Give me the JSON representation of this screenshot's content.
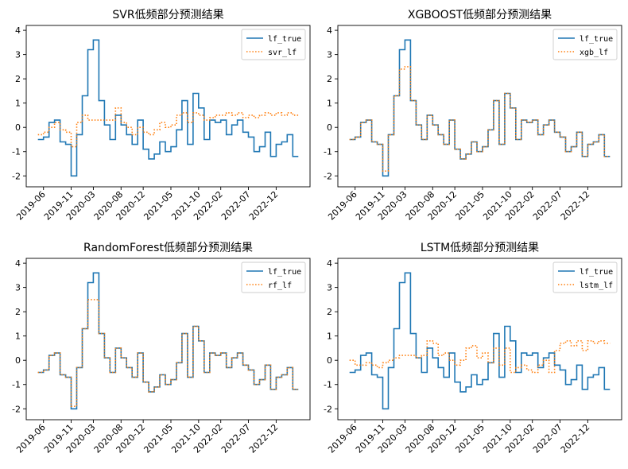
{
  "chart_data": [
    {
      "type": "line",
      "title": "SVR低频部分预测结果",
      "xlabel": "",
      "ylabel": "",
      "ylim": [
        -2.45,
        4.2
      ],
      "y_ticks": [
        -2,
        -1,
        0,
        1,
        2,
        3,
        4
      ],
      "x_ticks": [
        "2019-06",
        "2019-11",
        "2020-03",
        "2020-08",
        "2020-12",
        "2021-05",
        "2021-10",
        "2022-02",
        "2022-07",
        "2022-12"
      ],
      "legend_position": "top-right",
      "x": [
        "2019-05",
        "2019-06",
        "2019-07",
        "2019-08",
        "2019-09",
        "2019-10",
        "2019-11",
        "2019-12",
        "2020-01",
        "2020-02",
        "2020-03",
        "2020-04",
        "2020-05",
        "2020-06",
        "2020-07",
        "2020-08",
        "2020-09",
        "2020-10",
        "2020-11",
        "2020-12",
        "2021-01",
        "2021-02",
        "2021-03",
        "2021-04",
        "2021-05",
        "2021-06",
        "2021-07",
        "2021-08",
        "2021-09",
        "2021-10",
        "2021-11",
        "2021-12",
        "2022-01",
        "2022-02",
        "2022-03",
        "2022-04",
        "2022-05",
        "2022-06",
        "2022-07",
        "2022-08",
        "2022-09",
        "2022-10",
        "2022-11",
        "2022-12",
        "2023-01",
        "2023-02",
        "2023-03"
      ],
      "series": [
        {
          "name": "lf_true",
          "color": "#1f77b4",
          "style": "solid",
          "values": [
            -0.5,
            -0.4,
            0.2,
            0.3,
            -0.6,
            -0.7,
            -2.0,
            -0.3,
            1.3,
            3.2,
            3.6,
            1.1,
            0.1,
            -0.5,
            0.5,
            0.1,
            -0.3,
            -0.7,
            0.3,
            -0.9,
            -1.3,
            -1.1,
            -0.6,
            -1.0,
            -0.8,
            -0.1,
            1.1,
            -0.7,
            1.4,
            0.8,
            -0.5,
            0.3,
            0.2,
            0.3,
            -0.3,
            0.1,
            0.3,
            -0.2,
            -0.4,
            -1.0,
            -0.8,
            -0.2,
            -1.2,
            -0.7,
            -0.6,
            -0.3,
            -1.2
          ]
        },
        {
          "name": "svr_lf",
          "color": "#ff7f0e",
          "style": "dotted",
          "values": [
            -0.3,
            -0.2,
            0.0,
            0.2,
            -0.1,
            -0.2,
            -0.8,
            0.2,
            0.5,
            0.3,
            0.3,
            0.3,
            0.3,
            0.3,
            0.8,
            0.2,
            0.0,
            -0.3,
            0.0,
            -0.2,
            -0.3,
            -0.1,
            0.2,
            0.0,
            0.1,
            0.5,
            0.6,
            0.2,
            0.6,
            0.5,
            0.3,
            0.4,
            0.5,
            0.5,
            0.6,
            0.5,
            0.6,
            0.4,
            0.5,
            0.4,
            0.5,
            0.6,
            0.5,
            0.6,
            0.5,
            0.6,
            0.5
          ]
        }
      ]
    },
    {
      "type": "line",
      "title": "XGBOOST低频部分预测结果",
      "xlabel": "",
      "ylabel": "",
      "ylim": [
        -2.45,
        4.2
      ],
      "y_ticks": [
        -2,
        -1,
        0,
        1,
        2,
        3,
        4
      ],
      "x_ticks": [
        "2019-06",
        "2019-11",
        "2020-03",
        "2020-08",
        "2020-12",
        "2021-05",
        "2021-10",
        "2022-02",
        "2022-07",
        "2022-12"
      ],
      "legend_position": "top-right",
      "x": [
        "2019-05",
        "2019-06",
        "2019-07",
        "2019-08",
        "2019-09",
        "2019-10",
        "2019-11",
        "2019-12",
        "2020-01",
        "2020-02",
        "2020-03",
        "2020-04",
        "2020-05",
        "2020-06",
        "2020-07",
        "2020-08",
        "2020-09",
        "2020-10",
        "2020-11",
        "2020-12",
        "2021-01",
        "2021-02",
        "2021-03",
        "2021-04",
        "2021-05",
        "2021-06",
        "2021-07",
        "2021-08",
        "2021-09",
        "2021-10",
        "2021-11",
        "2021-12",
        "2022-01",
        "2022-02",
        "2022-03",
        "2022-04",
        "2022-05",
        "2022-06",
        "2022-07",
        "2022-08",
        "2022-09",
        "2022-10",
        "2022-11",
        "2022-12",
        "2023-01",
        "2023-02",
        "2023-03"
      ],
      "series": [
        {
          "name": "lf_true",
          "color": "#1f77b4",
          "style": "solid",
          "values": [
            -0.5,
            -0.4,
            0.2,
            0.3,
            -0.6,
            -0.7,
            -2.0,
            -0.3,
            1.3,
            3.2,
            3.6,
            1.1,
            0.1,
            -0.5,
            0.5,
            0.1,
            -0.3,
            -0.7,
            0.3,
            -0.9,
            -1.3,
            -1.1,
            -0.6,
            -1.0,
            -0.8,
            -0.1,
            1.1,
            -0.7,
            1.4,
            0.8,
            -0.5,
            0.3,
            0.2,
            0.3,
            -0.3,
            0.1,
            0.3,
            -0.2,
            -0.4,
            -1.0,
            -0.8,
            -0.2,
            -1.2,
            -0.7,
            -0.6,
            -0.3,
            -1.2
          ]
        },
        {
          "name": "xgb_lf",
          "color": "#ff7f0e",
          "style": "dotted",
          "values": [
            -0.5,
            -0.4,
            0.2,
            0.3,
            -0.6,
            -0.7,
            -1.8,
            -0.3,
            1.3,
            2.4,
            2.5,
            1.1,
            0.1,
            -0.5,
            0.5,
            0.1,
            -0.3,
            -0.7,
            0.3,
            -0.9,
            -1.3,
            -1.1,
            -0.6,
            -1.0,
            -0.8,
            -0.1,
            1.1,
            -0.7,
            1.4,
            0.8,
            -0.5,
            0.3,
            0.2,
            0.3,
            -0.3,
            0.1,
            0.3,
            -0.2,
            -0.4,
            -1.0,
            -0.8,
            -0.2,
            -1.2,
            -0.7,
            -0.6,
            -0.3,
            -1.2
          ]
        }
      ]
    },
    {
      "type": "line",
      "title": "RandomForest低频部分预测结果",
      "xlabel": "",
      "ylabel": "",
      "ylim": [
        -2.45,
        4.2
      ],
      "y_ticks": [
        -2,
        -1,
        0,
        1,
        2,
        3,
        4
      ],
      "x_ticks": [
        "2019-06",
        "2019-11",
        "2020-03",
        "2020-08",
        "2020-12",
        "2021-05",
        "2021-10",
        "2022-02",
        "2022-07",
        "2022-12"
      ],
      "legend_position": "top-right",
      "x": [
        "2019-05",
        "2019-06",
        "2019-07",
        "2019-08",
        "2019-09",
        "2019-10",
        "2019-11",
        "2019-12",
        "2020-01",
        "2020-02",
        "2020-03",
        "2020-04",
        "2020-05",
        "2020-06",
        "2020-07",
        "2020-08",
        "2020-09",
        "2020-10",
        "2020-11",
        "2020-12",
        "2021-01",
        "2021-02",
        "2021-03",
        "2021-04",
        "2021-05",
        "2021-06",
        "2021-07",
        "2021-08",
        "2021-09",
        "2021-10",
        "2021-11",
        "2021-12",
        "2022-01",
        "2022-02",
        "2022-03",
        "2022-04",
        "2022-05",
        "2022-06",
        "2022-07",
        "2022-08",
        "2022-09",
        "2022-10",
        "2022-11",
        "2022-12",
        "2023-01",
        "2023-02",
        "2023-03"
      ],
      "series": [
        {
          "name": "lf_true",
          "color": "#1f77b4",
          "style": "solid",
          "values": [
            -0.5,
            -0.4,
            0.2,
            0.3,
            -0.6,
            -0.7,
            -2.0,
            -0.3,
            1.3,
            3.2,
            3.6,
            1.1,
            0.1,
            -0.5,
            0.5,
            0.1,
            -0.3,
            -0.7,
            0.3,
            -0.9,
            -1.3,
            -1.1,
            -0.6,
            -1.0,
            -0.8,
            -0.1,
            1.1,
            -0.7,
            1.4,
            0.8,
            -0.5,
            0.3,
            0.2,
            0.3,
            -0.3,
            0.1,
            0.3,
            -0.2,
            -0.4,
            -1.0,
            -0.8,
            -0.2,
            -1.2,
            -0.7,
            -0.6,
            -0.3,
            -1.2
          ]
        },
        {
          "name": "rf_lf",
          "color": "#ff7f0e",
          "style": "dotted",
          "values": [
            -0.5,
            -0.4,
            0.2,
            0.3,
            -0.6,
            -0.7,
            -1.9,
            -0.3,
            1.3,
            2.5,
            2.5,
            1.1,
            0.1,
            -0.5,
            0.5,
            0.1,
            -0.3,
            -0.7,
            0.3,
            -0.9,
            -1.3,
            -1.1,
            -0.6,
            -1.0,
            -0.8,
            -0.1,
            1.1,
            -0.7,
            1.4,
            0.8,
            -0.5,
            0.3,
            0.2,
            0.3,
            -0.3,
            0.1,
            0.3,
            -0.2,
            -0.4,
            -1.0,
            -0.8,
            -0.2,
            -1.2,
            -0.7,
            -0.6,
            -0.3,
            -1.2
          ]
        }
      ]
    },
    {
      "type": "line",
      "title": "LSTM低频部分预测结果",
      "xlabel": "",
      "ylabel": "",
      "ylim": [
        -2.45,
        4.2
      ],
      "y_ticks": [
        -2,
        -1,
        0,
        1,
        2,
        3,
        4
      ],
      "x_ticks": [
        "2019-06",
        "2019-11",
        "2020-03",
        "2020-08",
        "2020-12",
        "2021-05",
        "2021-10",
        "2022-02",
        "2022-07",
        "2022-12"
      ],
      "legend_position": "top-right",
      "x": [
        "2019-05",
        "2019-06",
        "2019-07",
        "2019-08",
        "2019-09",
        "2019-10",
        "2019-11",
        "2019-12",
        "2020-01",
        "2020-02",
        "2020-03",
        "2020-04",
        "2020-05",
        "2020-06",
        "2020-07",
        "2020-08",
        "2020-09",
        "2020-10",
        "2020-11",
        "2020-12",
        "2021-01",
        "2021-02",
        "2021-03",
        "2021-04",
        "2021-05",
        "2021-06",
        "2021-07",
        "2021-08",
        "2021-09",
        "2021-10",
        "2021-11",
        "2021-12",
        "2022-01",
        "2022-02",
        "2022-03",
        "2022-04",
        "2022-05",
        "2022-06",
        "2022-07",
        "2022-08",
        "2022-09",
        "2022-10",
        "2022-11",
        "2022-12",
        "2023-01",
        "2023-02",
        "2023-03"
      ],
      "series": [
        {
          "name": "lf_true",
          "color": "#1f77b4",
          "style": "solid",
          "values": [
            -0.5,
            -0.4,
            0.2,
            0.3,
            -0.6,
            -0.7,
            -2.0,
            -0.3,
            1.3,
            3.2,
            3.6,
            1.1,
            0.1,
            -0.5,
            0.5,
            0.1,
            -0.3,
            -0.7,
            0.3,
            -0.9,
            -1.3,
            -1.1,
            -0.6,
            -1.0,
            -0.8,
            -0.1,
            1.1,
            -0.7,
            1.4,
            0.8,
            -0.5,
            0.3,
            0.2,
            0.3,
            -0.3,
            0.1,
            0.3,
            -0.2,
            -0.4,
            -1.0,
            -0.8,
            -0.2,
            -1.2,
            -0.7,
            -0.6,
            -0.3,
            -1.2
          ]
        },
        {
          "name": "lstm_lf",
          "color": "#ff7f0e",
          "style": "dotted",
          "values": [
            0.0,
            -0.2,
            -0.2,
            -0.1,
            -0.2,
            -0.3,
            -0.1,
            0.0,
            0.1,
            0.2,
            0.2,
            0.2,
            0.1,
            0.2,
            0.8,
            0.7,
            0.2,
            0.3,
            0.0,
            -0.2,
            0.0,
            0.5,
            0.6,
            0.1,
            0.3,
            -0.1,
            0.5,
            -0.2,
            0.5,
            -0.5,
            -0.3,
            -0.2,
            -0.4,
            -0.5,
            -0.2,
            0.0,
            -0.5,
            0.4,
            0.7,
            0.8,
            0.6,
            0.8,
            0.4,
            0.8,
            0.7,
            0.8,
            0.7
          ]
        }
      ]
    }
  ]
}
